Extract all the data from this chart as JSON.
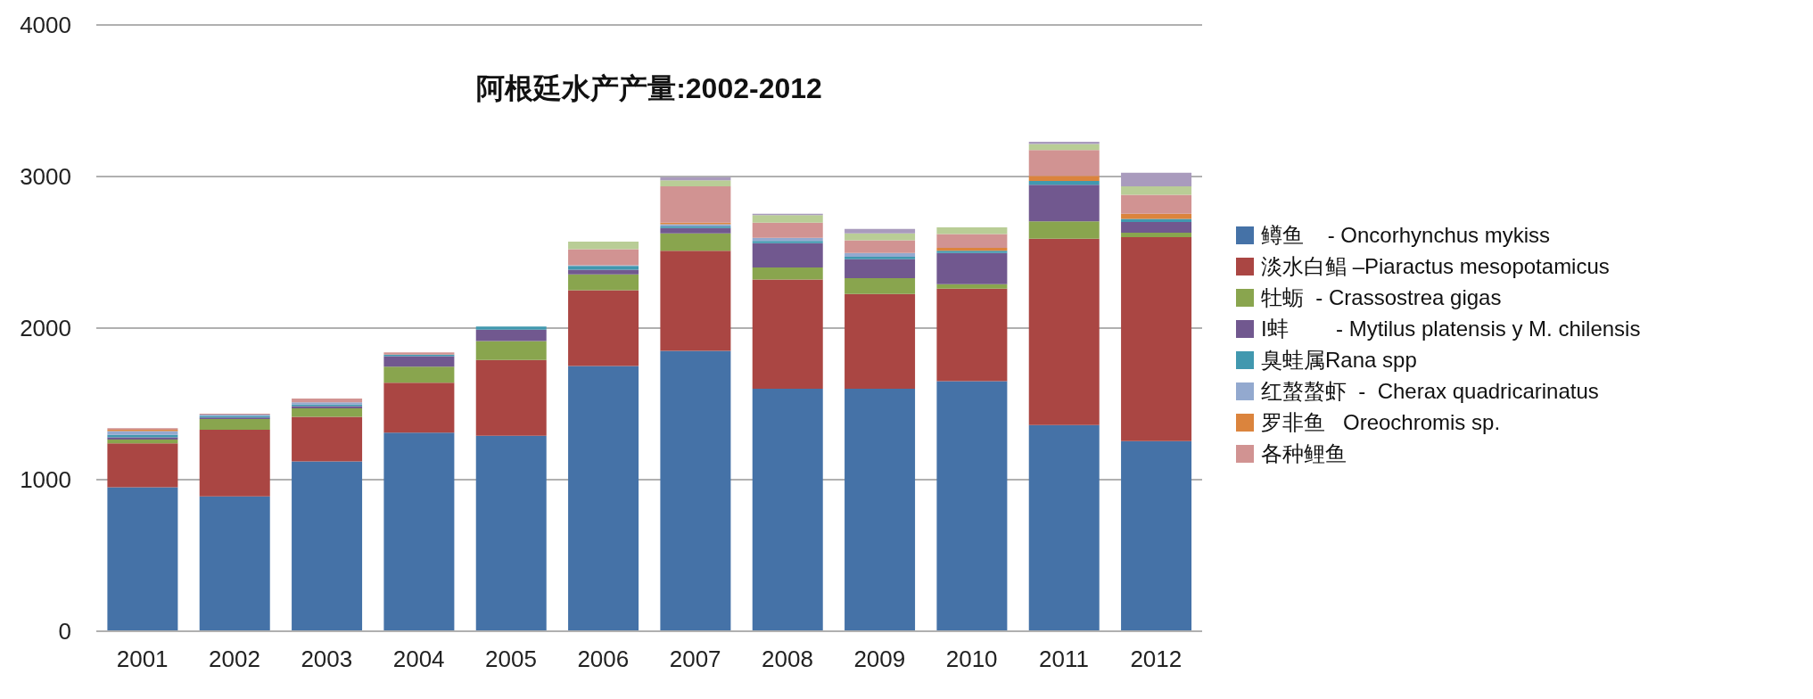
{
  "chart_data": {
    "type": "bar",
    "title": "阿根廷水产产量:2002-2012",
    "stacked": true,
    "grid": "y",
    "legend": "right",
    "categories": [
      "2001",
      "2002",
      "2003",
      "2004",
      "2005",
      "2006",
      "2007",
      "2008",
      "2009",
      "2010",
      "2011",
      "2012"
    ],
    "ylim": [
      0,
      4000
    ],
    "yticks": [
      0,
      1000,
      2000,
      3000,
      4000
    ],
    "series": [
      {
        "name": "鳟鱼    - Oncorhynchus mykiss",
        "color": "#4572a7",
        "values": [
          950,
          890,
          1120,
          1310,
          1290,
          1750,
          1850,
          1600,
          1600,
          1650,
          1360,
          1255
        ]
      },
      {
        "name": "淡水白鲳 –Piaractus mesopotamicus",
        "color": "#aa4643",
        "values": [
          290,
          440,
          295,
          330,
          500,
          500,
          660,
          720,
          625,
          610,
          1230,
          1345
        ]
      },
      {
        "name": "牡蛎  - Crassostrea gigas",
        "color": "#89a54e",
        "values": [
          25,
          70,
          55,
          105,
          125,
          105,
          115,
          80,
          105,
          30,
          115,
          30
        ]
      },
      {
        "name": "I蚌        - Mytilus platensis y M. chilensis",
        "color": "#71588f",
        "values": [
          15,
          10,
          15,
          70,
          75,
          30,
          35,
          160,
          125,
          205,
          240,
          70
        ]
      },
      {
        "name": "臭蛙属Rana spp",
        "color": "#4198af",
        "values": [
          15,
          10,
          10,
          10,
          20,
          25,
          10,
          15,
          15,
          15,
          25,
          20
        ]
      },
      {
        "name": "红螯螯虾  -  Cherax quadricarinatus",
        "color": "#93a9cf",
        "values": [
          25,
          10,
          15,
          0,
          0,
          5,
          15,
          20,
          25,
          0,
          0,
          0
        ]
      },
      {
        "name": "罗非鱼   Oreochromis sp.",
        "color": "#db843d",
        "values": [
          10,
          0,
          0,
          0,
          0,
          0,
          10,
          0,
          0,
          20,
          35,
          35
        ]
      },
      {
        "name": "各种鲤鱼",
        "color": "#d19392",
        "values": [
          10,
          5,
          25,
          15,
          0,
          105,
          240,
          100,
          85,
          90,
          170,
          125
        ]
      },
      {
        "color": "#b9cd96",
        "values": [
          0,
          0,
          0,
          0,
          0,
          50,
          40,
          50,
          45,
          45,
          40,
          55
        ]
      },
      {
        "color": "#a99bbd",
        "values": [
          0,
          0,
          0,
          0,
          0,
          0,
          20,
          10,
          30,
          0,
          15,
          90
        ]
      }
    ]
  }
}
